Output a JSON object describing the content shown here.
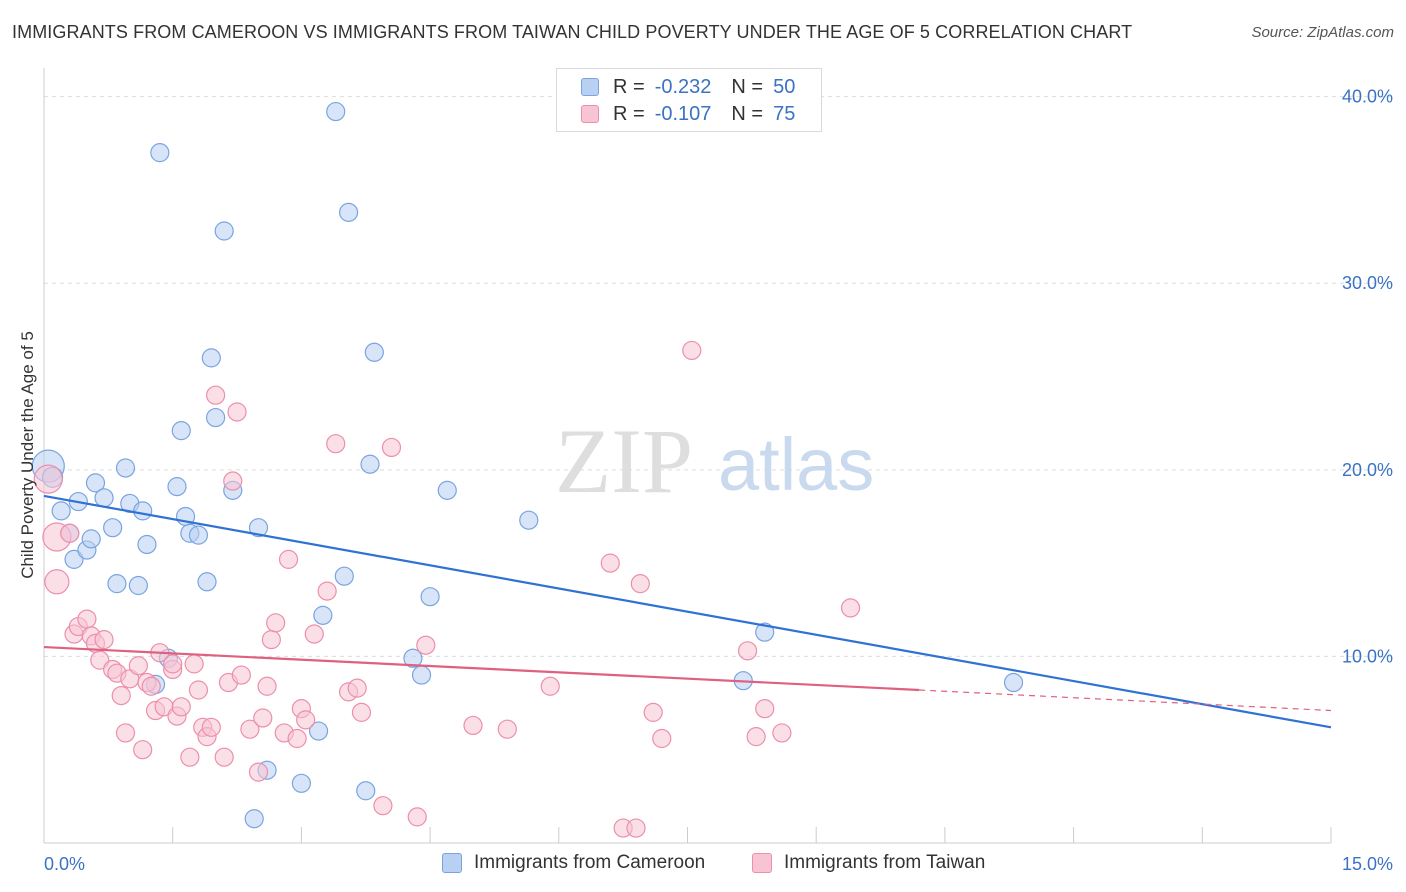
{
  "title": "IMMIGRANTS FROM CAMEROON VS IMMIGRANTS FROM TAIWAN CHILD POVERTY UNDER THE AGE OF 5 CORRELATION CHART",
  "source": "Source: ZipAtlas.com",
  "watermark": {
    "zip": "ZIP",
    "atlas": "atlas"
  },
  "legend": {
    "r_label": "R =",
    "n_label": "N =",
    "rows": [
      {
        "r": "-0.232",
        "n": "50",
        "fill": "#b8d0f2",
        "stroke": "#7aa4e0"
      },
      {
        "r": "-0.107",
        "n": "75",
        "fill": "#f8c4d4",
        "stroke": "#ec8fab"
      }
    ]
  },
  "chart_data": {
    "type": "scatter",
    "title": "IMMIGRANTS FROM CAMEROON VS IMMIGRANTS FROM TAIWAN CHILD POVERTY UNDER THE AGE OF 5 CORRELATION CHART",
    "xlabel": "",
    "ylabel": "Child Poverty Under the Age of 5",
    "xlim": [
      0,
      15
    ],
    "ylim": [
      0,
      41
    ],
    "x_ticks": [
      0,
      1.5,
      3,
      4.5,
      6,
      7.5,
      9,
      10.5,
      12,
      13.5,
      15
    ],
    "x_tick_labels": [
      {
        "value": 0,
        "label": "0.0%"
      },
      {
        "value": 15,
        "label": "15.0%"
      }
    ],
    "y_tick_labels": [
      {
        "value": 10,
        "label": "10.0%"
      },
      {
        "value": 20,
        "label": "20.0%"
      },
      {
        "value": 30,
        "label": "30.0%"
      },
      {
        "value": 40,
        "label": "40.0%"
      }
    ],
    "grid": true,
    "legend_position": "top-center",
    "series": [
      {
        "name": "Immigrants from Cameroon",
        "fill": "#b8d0f2",
        "stroke": "#7aa4e0",
        "line_color": "#2f72d4",
        "trend": {
          "x0": 0,
          "y0": 18.6,
          "x1": 15,
          "y1": 6.2
        },
        "points": [
          [
            0.05,
            20.2,
            16
          ],
          [
            0.1,
            19.6,
            10
          ],
          [
            0.2,
            17.8,
            9
          ],
          [
            0.3,
            16.6,
            9
          ],
          [
            0.35,
            15.2,
            9
          ],
          [
            0.4,
            18.3,
            9
          ],
          [
            0.5,
            15.7,
            9
          ],
          [
            0.55,
            16.3,
            9
          ],
          [
            0.6,
            19.3,
            9
          ],
          [
            0.7,
            18.5,
            9
          ],
          [
            0.8,
            16.9,
            9
          ],
          [
            0.85,
            13.9,
            9
          ],
          [
            0.95,
            20.1,
            9
          ],
          [
            1.0,
            18.2,
            9
          ],
          [
            1.1,
            13.8,
            9
          ],
          [
            1.15,
            17.8,
            9
          ],
          [
            1.2,
            16.0,
            9
          ],
          [
            1.35,
            37.0,
            9
          ],
          [
            1.45,
            9.9,
            9
          ],
          [
            1.55,
            19.1,
            9
          ],
          [
            1.6,
            22.1,
            9
          ],
          [
            1.65,
            17.5,
            9
          ],
          [
            1.7,
            16.6,
            9
          ],
          [
            1.8,
            16.5,
            9
          ],
          [
            1.9,
            14.0,
            9
          ],
          [
            1.95,
            26.0,
            9
          ],
          [
            2.0,
            22.8,
            9
          ],
          [
            2.1,
            32.8,
            9
          ],
          [
            2.2,
            18.9,
            9
          ],
          [
            2.45,
            1.3,
            9
          ],
          [
            2.5,
            16.9,
            9
          ],
          [
            2.6,
            3.9,
            9
          ],
          [
            3.0,
            3.2,
            9
          ],
          [
            3.2,
            6.0,
            9
          ],
          [
            3.25,
            12.2,
            9
          ],
          [
            3.4,
            39.2,
            9
          ],
          [
            3.5,
            14.3,
            9
          ],
          [
            3.55,
            33.8,
            9
          ],
          [
            3.75,
            2.8,
            9
          ],
          [
            3.8,
            20.3,
            9
          ],
          [
            3.85,
            26.3,
            9
          ],
          [
            4.3,
            9.9,
            9
          ],
          [
            4.4,
            9.0,
            9
          ],
          [
            4.5,
            13.2,
            9
          ],
          [
            4.7,
            18.9,
            9
          ],
          [
            5.65,
            17.3,
            9
          ],
          [
            8.15,
            8.7,
            9
          ],
          [
            8.4,
            11.3,
            9
          ],
          [
            11.3,
            8.6,
            9
          ],
          [
            1.3,
            8.5,
            9
          ]
        ]
      },
      {
        "name": "Immigrants from Taiwan",
        "fill": "#f8c4d4",
        "stroke": "#ec8fab",
        "line_color": "#e0607f",
        "trend": {
          "x0": 0,
          "y0": 10.5,
          "x1": 10.2,
          "y1": 8.2
        },
        "trend_dashed": {
          "x0": 10.2,
          "y0": 8.2,
          "x1": 15,
          "y1": 7.1
        },
        "points": [
          [
            0.05,
            19.5,
            14
          ],
          [
            0.15,
            16.4,
            14
          ],
          [
            0.3,
            16.6,
            9
          ],
          [
            0.15,
            14.0,
            12
          ],
          [
            0.35,
            11.2,
            9
          ],
          [
            0.4,
            11.6,
            9
          ],
          [
            0.5,
            12.0,
            9
          ],
          [
            0.55,
            11.1,
            9
          ],
          [
            0.6,
            10.7,
            9
          ],
          [
            0.65,
            9.8,
            9
          ],
          [
            0.7,
            10.9,
            9
          ],
          [
            0.8,
            9.3,
            9
          ],
          [
            0.85,
            9.1,
            9
          ],
          [
            0.9,
            7.9,
            9
          ],
          [
            0.95,
            5.9,
            9
          ],
          [
            1.0,
            8.8,
            9
          ],
          [
            1.1,
            9.5,
            9
          ],
          [
            1.15,
            5.0,
            9
          ],
          [
            1.2,
            8.6,
            9
          ],
          [
            1.25,
            8.4,
            9
          ],
          [
            1.3,
            7.1,
            9
          ],
          [
            1.35,
            10.2,
            9
          ],
          [
            1.4,
            7.3,
            9
          ],
          [
            1.5,
            9.3,
            9
          ],
          [
            1.5,
            9.6,
            9
          ],
          [
            1.55,
            6.8,
            9
          ],
          [
            1.6,
            7.3,
            9
          ],
          [
            1.7,
            4.6,
            9
          ],
          [
            1.75,
            9.6,
            9
          ],
          [
            1.8,
            8.2,
            9
          ],
          [
            1.85,
            6.2,
            9
          ],
          [
            1.9,
            5.7,
            9
          ],
          [
            1.95,
            6.2,
            9
          ],
          [
            2.0,
            24.0,
            9
          ],
          [
            2.1,
            4.6,
            9
          ],
          [
            2.15,
            8.6,
            9
          ],
          [
            2.2,
            19.4,
            9
          ],
          [
            2.25,
            23.1,
            9
          ],
          [
            2.3,
            9.0,
            9
          ],
          [
            2.4,
            6.1,
            9
          ],
          [
            2.5,
            3.8,
            9
          ],
          [
            2.55,
            6.7,
            9
          ],
          [
            2.6,
            8.4,
            9
          ],
          [
            2.65,
            10.9,
            9
          ],
          [
            2.7,
            11.8,
            9
          ],
          [
            2.8,
            5.9,
            9
          ],
          [
            2.85,
            15.2,
            9
          ],
          [
            2.95,
            5.6,
            9
          ],
          [
            3.0,
            7.2,
            9
          ],
          [
            3.05,
            6.6,
            9
          ],
          [
            3.15,
            11.2,
            9
          ],
          [
            3.3,
            13.5,
            9
          ],
          [
            3.4,
            21.4,
            9
          ],
          [
            3.55,
            8.1,
            9
          ],
          [
            3.65,
            8.3,
            9
          ],
          [
            3.7,
            7.0,
            9
          ],
          [
            3.95,
            2.0,
            9
          ],
          [
            4.05,
            21.2,
            9
          ],
          [
            4.35,
            1.4,
            9
          ],
          [
            4.45,
            10.6,
            9
          ],
          [
            5.0,
            6.3,
            9
          ],
          [
            5.4,
            6.1,
            9
          ],
          [
            5.9,
            8.4,
            9
          ],
          [
            6.6,
            15.0,
            9
          ],
          [
            6.75,
            0.8,
            9
          ],
          [
            6.9,
            0.8,
            9
          ],
          [
            6.95,
            13.9,
            9
          ],
          [
            7.1,
            7.0,
            9
          ],
          [
            7.2,
            5.6,
            9
          ],
          [
            7.55,
            26.4,
            9
          ],
          [
            8.2,
            10.3,
            9
          ],
          [
            8.3,
            5.7,
            9
          ],
          [
            8.4,
            7.2,
            9
          ],
          [
            8.6,
            5.9,
            9
          ],
          [
            9.4,
            12.6,
            9
          ]
        ]
      }
    ]
  }
}
